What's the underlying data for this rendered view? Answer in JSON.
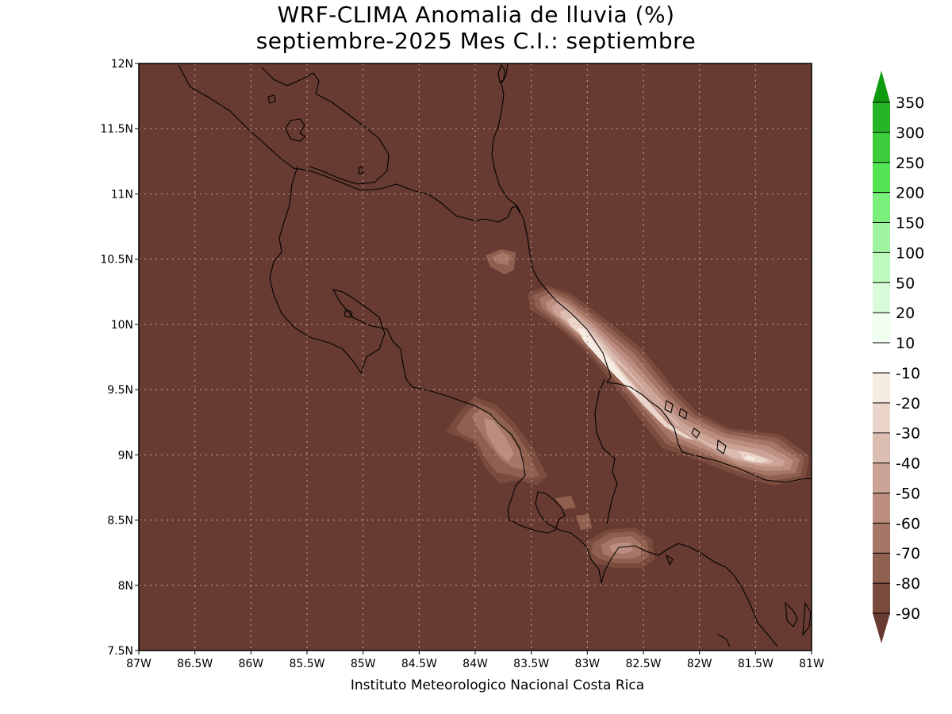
{
  "title": {
    "line1": "WRF-CLIMA Anomalia de lluvia (%)",
    "line2": "septiembre-2025 Mes C.I.: septiembre"
  },
  "credit": "Instituto Meteorologico Nacional Costa Rica",
  "map": {
    "background_color": "#673b31",
    "coast_color": "#000000",
    "grid_color": "#c8a89a",
    "lon_range": [
      -87,
      -81
    ],
    "lat_range": [
      7.5,
      12
    ],
    "lon_ticks": [
      {
        "value": -87,
        "label": "87W"
      },
      {
        "value": -86.5,
        "label": "86.5W"
      },
      {
        "value": -86,
        "label": "86W"
      },
      {
        "value": -85.5,
        "label": "85.5W"
      },
      {
        "value": -85,
        "label": "85W"
      },
      {
        "value": -84.5,
        "label": "84.5W"
      },
      {
        "value": -84,
        "label": "84W"
      },
      {
        "value": -83.5,
        "label": "83.5W"
      },
      {
        "value": -83,
        "label": "83W"
      },
      {
        "value": -82.5,
        "label": "82.5W"
      },
      {
        "value": -82,
        "label": "82W"
      },
      {
        "value": -81.5,
        "label": "81.5W"
      },
      {
        "value": -81,
        "label": "81W"
      }
    ],
    "lat_ticks": [
      {
        "value": 12,
        "label": "12N"
      },
      {
        "value": 11.5,
        "label": "11.5N"
      },
      {
        "value": 11,
        "label": "11N"
      },
      {
        "value": 10.5,
        "label": "10.5N"
      },
      {
        "value": 10,
        "label": "10N"
      },
      {
        "value": 9.5,
        "label": "9.5N"
      },
      {
        "value": 9,
        "label": "9N"
      },
      {
        "value": 8.5,
        "label": "8.5N"
      },
      {
        "value": 8,
        "label": "8N"
      },
      {
        "value": 7.5,
        "label": "7.5N"
      }
    ]
  },
  "colorbar": {
    "labels": [
      "350",
      "300",
      "250",
      "200",
      "150",
      "100",
      "50",
      "20",
      "10",
      "-10",
      "-20",
      "-30",
      "-40",
      "-50",
      "-60",
      "-70",
      "-80",
      "-90"
    ],
    "colors": [
      "#0f9a0f",
      "#27b427",
      "#3ccd3c",
      "#52e452",
      "#7bef7b",
      "#9ff59f",
      "#bdf8bd",
      "#d9fbd9",
      "#f0fff0",
      "#ffffff",
      "#f6ebe1",
      "#ebd4ca",
      "#dcbdb2",
      "#cca497",
      "#bb8e80",
      "#a67667",
      "#8f5f50",
      "#7a4c3e",
      "#673b31"
    ]
  }
}
